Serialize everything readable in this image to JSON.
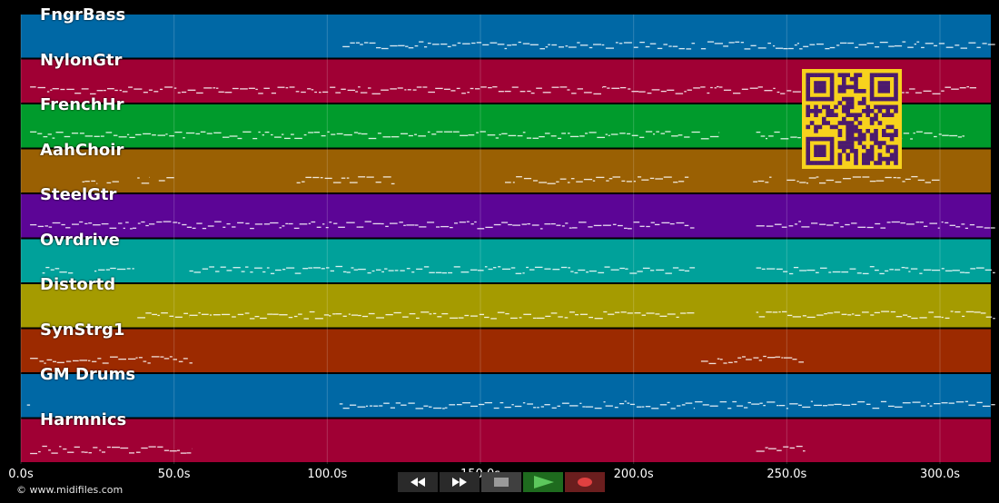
{
  "app": {
    "copyright": "© www.midifiles.com"
  },
  "timeline": {
    "tick_labels": [
      "0.0s",
      "50.0s",
      "100.0s",
      "150.0s",
      "200.0s",
      "250.0s",
      "300.0s"
    ],
    "tick_values": [
      0,
      50,
      100,
      150,
      200,
      250,
      300
    ],
    "duration": 316
  },
  "tracks": [
    {
      "name": "FngrBass",
      "color": "#0068a5"
    },
    {
      "name": "NylonGtr",
      "color": "#a00034"
    },
    {
      "name": "FrenchHr",
      "color": "#009b2c"
    },
    {
      "name": "AahChoir",
      "color": "#9a6003"
    },
    {
      "name": "SteelGtr",
      "color": "#5c0596"
    },
    {
      "name": "Ovrdrive",
      "color": "#00a19a"
    },
    {
      "name": "Distortd",
      "color": "#a59b00"
    },
    {
      "name": "SynStrg1",
      "color": "#9c2a00"
    },
    {
      "name": "GM Drums",
      "color": "#0068a5"
    },
    {
      "name": "Harmnics",
      "color": "#a00034"
    }
  ],
  "transport": {
    "buttons": [
      {
        "id": "rewind",
        "icon": "rewind-icon",
        "color": "#2a2a2a",
        "glyph": "#ffffff"
      },
      {
        "id": "forward",
        "icon": "fast-forward-icon",
        "color": "#2a2a2a",
        "glyph": "#ffffff"
      },
      {
        "id": "stop",
        "icon": "stop-icon",
        "color": "#404040",
        "glyph": "#9a9a9a"
      },
      {
        "id": "play",
        "icon": "play-icon",
        "color": "#1e6b1e",
        "glyph": "#5cc85c"
      },
      {
        "id": "record",
        "icon": "record-icon",
        "color": "#6b1e1e",
        "glyph": "#e04040"
      }
    ]
  },
  "overlay": {
    "qr_icon": "qr-code-icon",
    "qr_color": "#f7d21d",
    "qr_dark": "#4b1a6e"
  }
}
